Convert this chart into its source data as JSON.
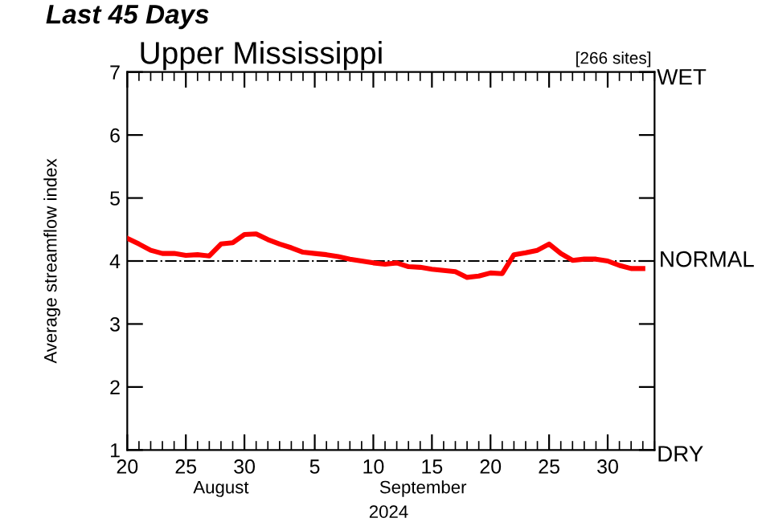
{
  "chart_data": {
    "type": "line",
    "title": "Last 45 Days",
    "subtitle": "Upper Mississippi",
    "ylabel": "Average streamflow index",
    "annotations": [
      "[266 sites]",
      "August",
      "September",
      "2024",
      "WET",
      "DRY"
    ],
    "x": [
      "2024-08-20",
      "2024-08-21",
      "2024-08-22",
      "2024-08-23",
      "2024-08-24",
      "2024-08-25",
      "2024-08-26",
      "2024-08-27",
      "2024-08-28",
      "2024-08-29",
      "2024-08-30",
      "2024-08-31",
      "2024-09-01",
      "2024-09-02",
      "2024-09-03",
      "2024-09-04",
      "2024-09-05",
      "2024-09-06",
      "2024-09-07",
      "2024-09-08",
      "2024-09-09",
      "2024-09-10",
      "2024-09-11",
      "2024-09-12",
      "2024-09-13",
      "2024-09-14",
      "2024-09-15",
      "2024-09-16",
      "2024-09-17",
      "2024-09-18",
      "2024-09-19",
      "2024-09-20",
      "2024-09-21",
      "2024-09-22",
      "2024-09-23",
      "2024-09-24",
      "2024-09-25",
      "2024-09-26",
      "2024-09-27",
      "2024-09-28",
      "2024-09-29",
      "2024-09-30",
      "2024-10-01",
      "2024-10-02",
      "2024-10-03"
    ],
    "series": [
      {
        "color": "#ff0000",
        "values": [
          4.36,
          4.27,
          4.17,
          4.12,
          4.12,
          4.09,
          4.1,
          4.08,
          4.27,
          4.29,
          4.42,
          4.43,
          4.34,
          4.27,
          4.21,
          4.14,
          4.12,
          4.1,
          4.07,
          4.03,
          4.0,
          3.97,
          3.95,
          3.97,
          3.91,
          3.9,
          3.87,
          3.85,
          3.83,
          3.74,
          3.76,
          3.81,
          3.8,
          4.1,
          4.13,
          4.17,
          4.27,
          4.12,
          4.01,
          4.03,
          4.03,
          4.0,
          3.93,
          3.88,
          3.88
        ]
      }
    ],
    "xlim": [
      "2024-08-20",
      "2024-10-04"
    ],
    "xticks": [
      {
        "value": "2024-08-20",
        "label": "20"
      },
      {
        "value": "2024-08-25",
        "label": "25"
      },
      {
        "value": "2024-08-30",
        "label": "30"
      },
      {
        "value": "2024-09-05",
        "label": "5"
      },
      {
        "value": "2024-09-10",
        "label": "10"
      },
      {
        "value": "2024-09-15",
        "label": "15"
      },
      {
        "value": "2024-09-20",
        "label": "20"
      },
      {
        "value": "2024-09-25",
        "label": "25"
      },
      {
        "value": "2024-09-30",
        "label": "30"
      }
    ],
    "ylim": [
      1,
      7
    ],
    "yticks": [
      1,
      2,
      3,
      4,
      5,
      6,
      7
    ],
    "ref_lines": [
      {
        "axis": "y",
        "value": 4,
        "label": "NORMAL",
        "color": "#000000",
        "line_style": "dashdot"
      }
    ],
    "grid": false,
    "legend": false,
    "marker": "none",
    "line_style": "solid"
  }
}
